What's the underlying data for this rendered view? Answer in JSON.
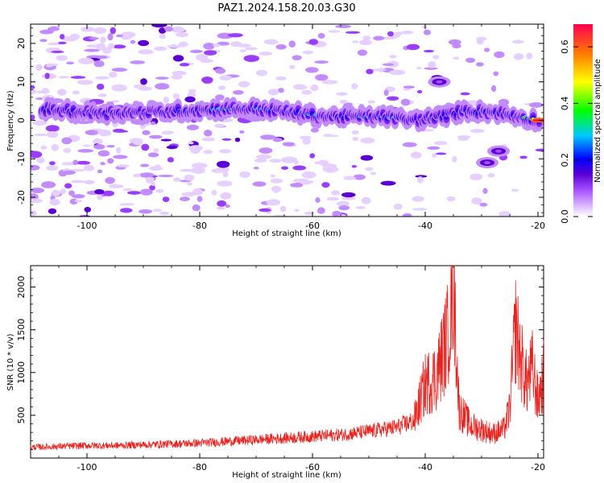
{
  "figure": {
    "title": "PAZ1.2024.158.20.03.G30"
  },
  "chart_data": [
    {
      "type": "heatmap",
      "title": "PAZ1.2024.158.20.03.G30",
      "xlabel": "Height of straight line (km)",
      "ylabel": "Frequency (Hz)",
      "xlim": [
        -110,
        -19
      ],
      "ylim": [
        -25,
        25
      ],
      "xticks": [
        -100,
        -80,
        -60,
        -40,
        -20
      ],
      "yticks": [
        -20,
        -10,
        0,
        10,
        20
      ],
      "colorbar": {
        "label": "Normalized spectral amplitude",
        "range": [
          0,
          0.68
        ],
        "ticks": [
          0.0,
          0.2,
          0.4,
          0.6
        ],
        "colormap": [
          "#ffffff",
          "#d9b3ff",
          "#a64dff",
          "#5a00d6",
          "#0000ff",
          "#00c8ff",
          "#00ff00",
          "#ffff00",
          "#ff8000",
          "#ff0050"
        ]
      },
      "ridge": [
        {
          "x": -108,
          "y": 3,
          "value": 0.1
        },
        {
          "x": -100,
          "y": 2,
          "value": 0.15
        },
        {
          "x": -90,
          "y": 2,
          "value": 0.2
        },
        {
          "x": -82,
          "y": 2.5,
          "value": 0.35
        },
        {
          "x": -75,
          "y": 3,
          "value": 0.35
        },
        {
          "x": -70,
          "y": 3,
          "value": 0.35
        },
        {
          "x": -63,
          "y": 2,
          "value": 0.3
        },
        {
          "x": -58,
          "y": 1,
          "value": 0.35
        },
        {
          "x": -52,
          "y": 1,
          "value": 0.3
        },
        {
          "x": -47,
          "y": 1,
          "value": 0.35
        },
        {
          "x": -42,
          "y": 0,
          "value": 0.25
        },
        {
          "x": -37,
          "y": 1,
          "value": 0.3
        },
        {
          "x": -33,
          "y": 2.5,
          "value": 0.25
        },
        {
          "x": -27,
          "y": 2,
          "value": 0.25
        },
        {
          "x": -22,
          "y": 0.5,
          "value": 0.35
        },
        {
          "x": -19.5,
          "y": 0,
          "value": 0.65
        }
      ],
      "side_blobs": [
        {
          "x": -37.5,
          "y": 10,
          "value": 0.2
        },
        {
          "x": -27,
          "y": -8,
          "value": 0.2
        },
        {
          "x": -29,
          "y": -11,
          "value": 0.15
        }
      ]
    },
    {
      "type": "line",
      "xlabel": "Height of straight line (km)",
      "ylabel": "SNR (10 * v/v)",
      "xlim": [
        -110,
        -19
      ],
      "ylim": [
        0,
        2250
      ],
      "xticks": [
        -100,
        -80,
        -60,
        -40,
        -20
      ],
      "yticks": [
        500,
        1000,
        1500,
        2000
      ],
      "color": "#e8231f",
      "series": [
        {
          "x": [
            -110,
            -105,
            -100,
            -95,
            -90,
            -85,
            -80,
            -75,
            -70,
            -65,
            -60,
            -55,
            -50,
            -45,
            -42,
            -40,
            -38,
            -36,
            -35,
            -34,
            -32,
            -30,
            -28,
            -26,
            -25,
            -24,
            -23,
            -22,
            -21,
            -20,
            -19
          ],
          "values": [
            130,
            140,
            150,
            150,
            160,
            170,
            180,
            200,
            220,
            240,
            260,
            280,
            320,
            370,
            450,
            900,
            1000,
            1500,
            2200,
            600,
            400,
            350,
            300,
            350,
            600,
            1600,
            1200,
            900,
            1100,
            700,
            1000
          ]
        }
      ]
    }
  ]
}
